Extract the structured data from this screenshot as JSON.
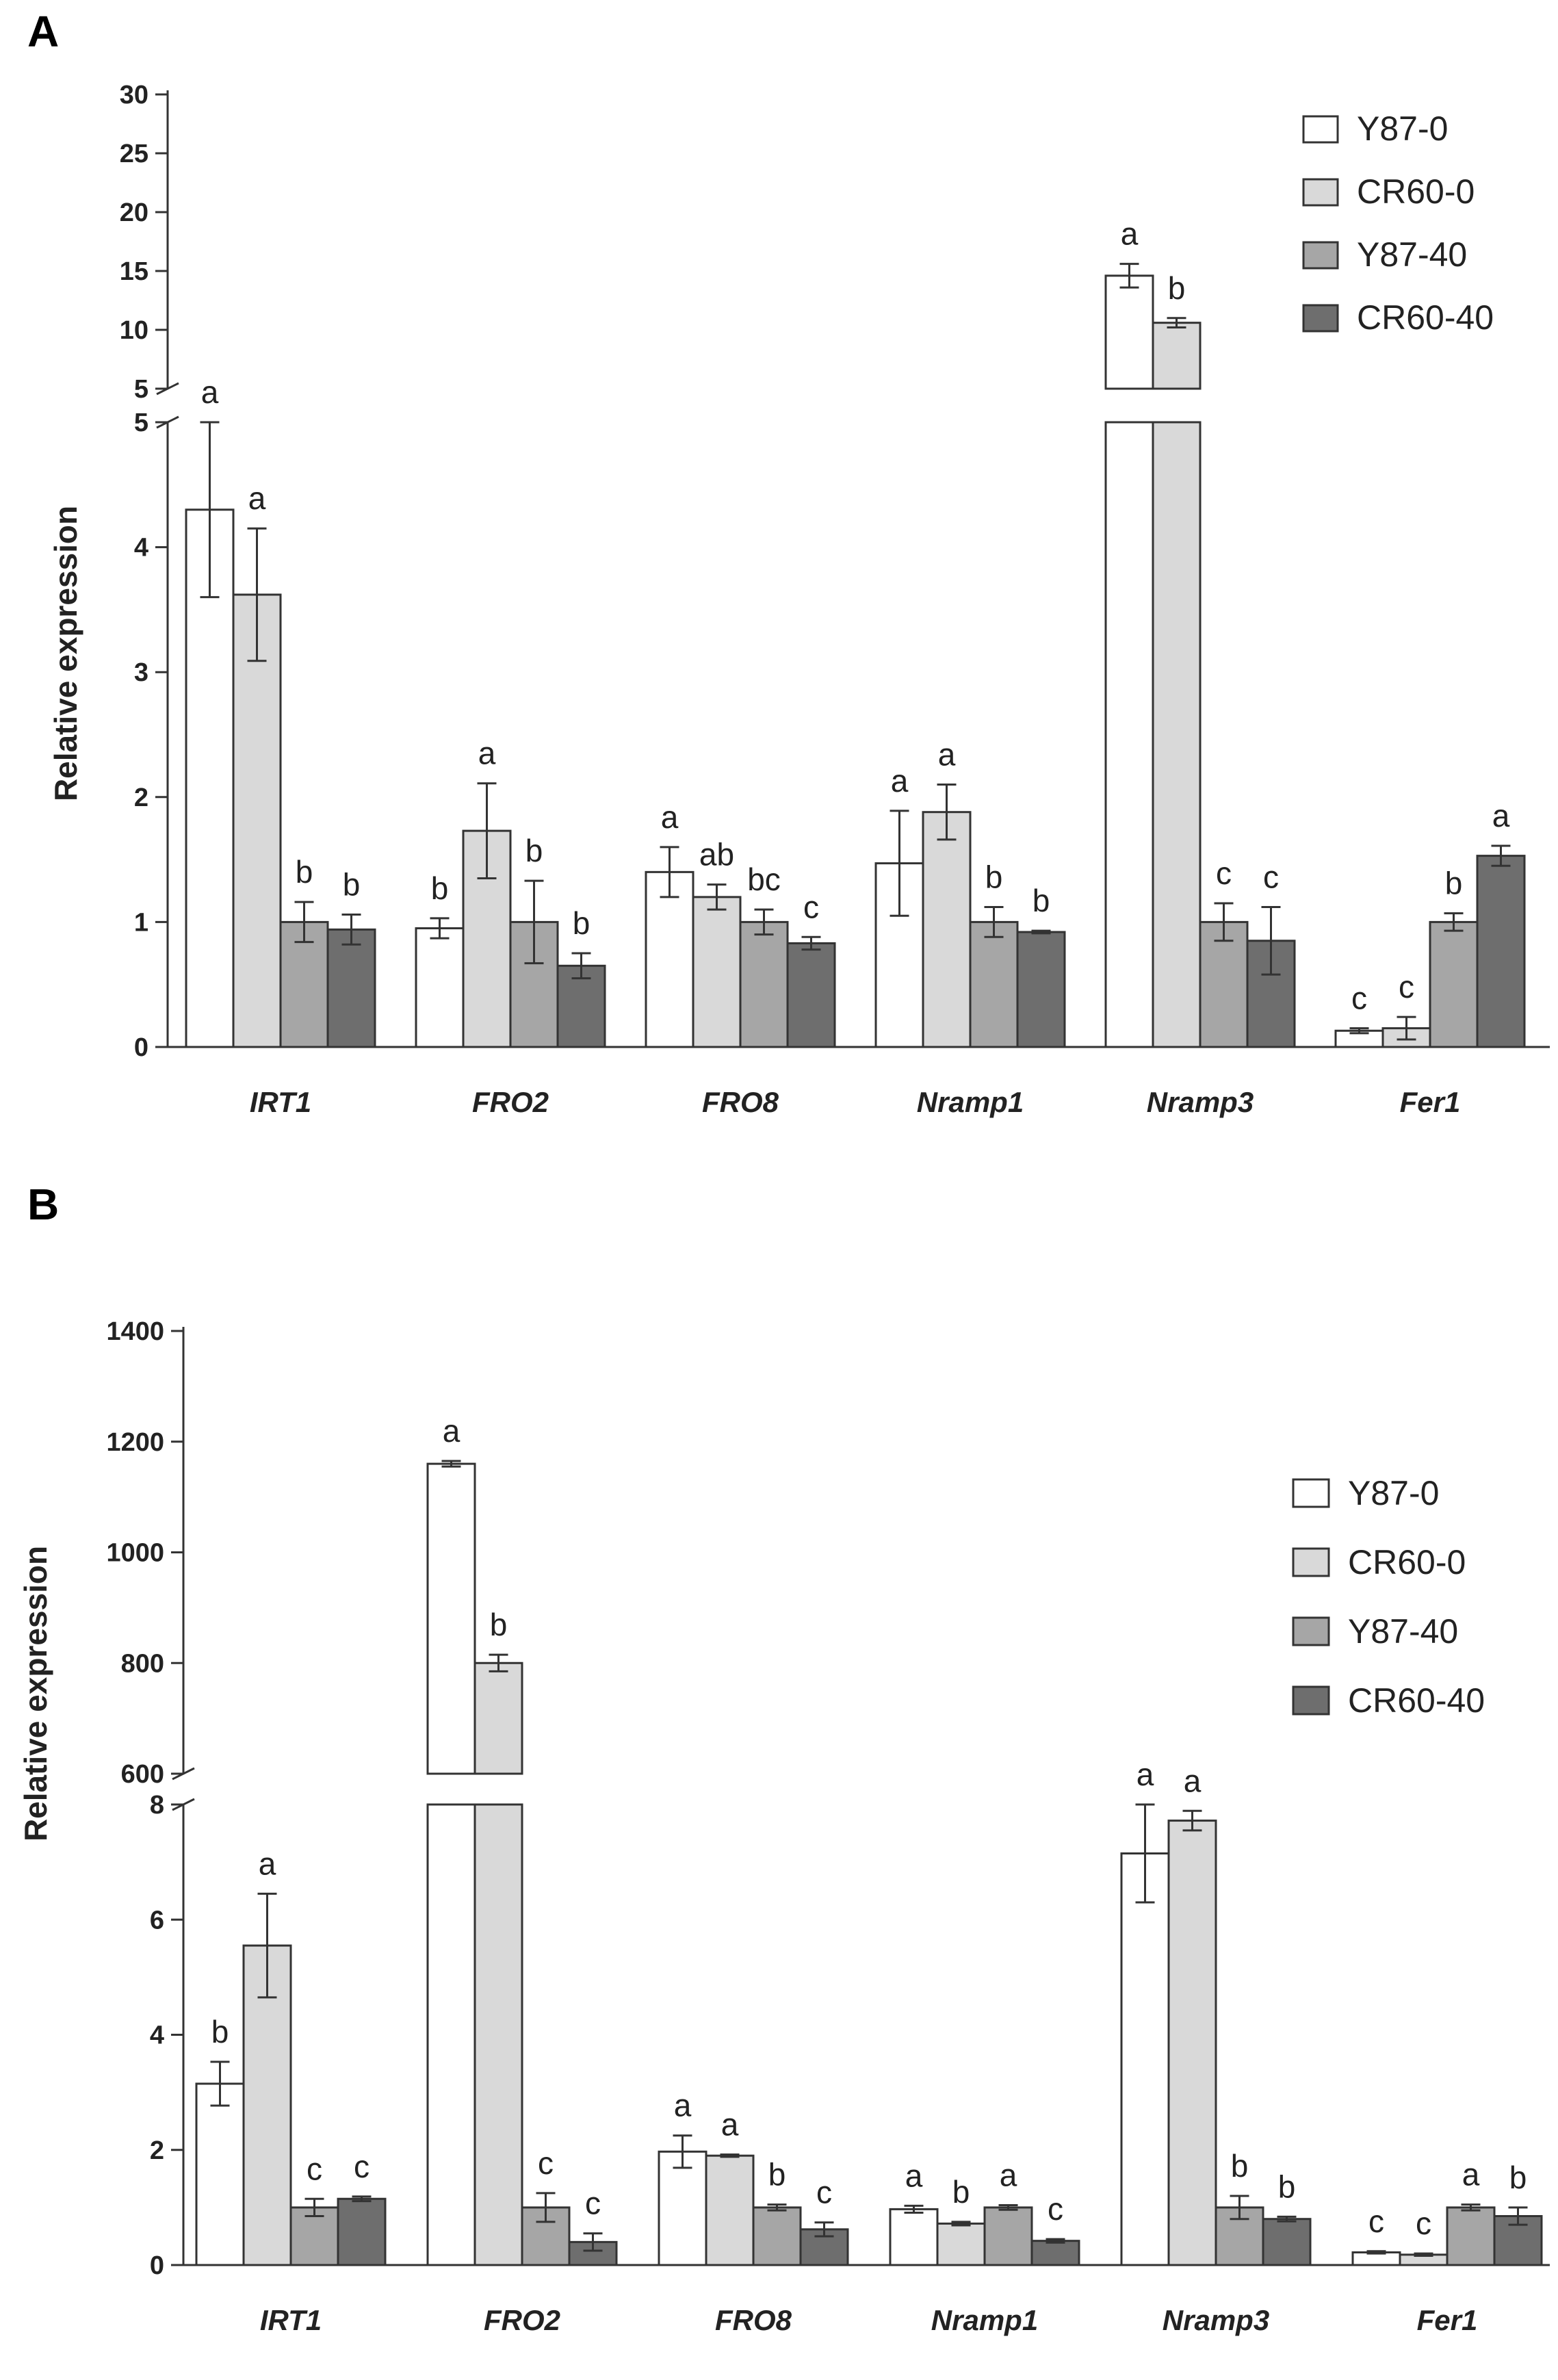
{
  "chart_data": [
    {
      "panel": "A",
      "type": "bar",
      "ylabel": "Relative expression",
      "categories": [
        "IRT1",
        "FRO2",
        "FRO8",
        "Nramp1",
        "Nramp3",
        "Fer1"
      ],
      "series": [
        {
          "name": "Y87-0",
          "color": "#ffffff",
          "values": [
            4.3,
            0.95,
            1.4,
            1.47,
            14.6,
            0.13
          ],
          "errors": [
            0.7,
            0.08,
            0.2,
            0.42,
            1.0,
            0.02
          ],
          "letters": [
            "a",
            "b",
            "a",
            "a",
            "a",
            "c"
          ]
        },
        {
          "name": "CR60-0",
          "color": "#d9d9d9",
          "values": [
            3.62,
            1.73,
            1.2,
            1.88,
            10.6,
            0.15
          ],
          "errors": [
            0.53,
            0.38,
            0.1,
            0.22,
            0.4,
            0.09
          ],
          "letters": [
            "a",
            "a",
            "ab",
            "a",
            "b",
            "c"
          ]
        },
        {
          "name": "Y87-40",
          "color": "#a6a6a6",
          "values": [
            1.0,
            1.0,
            1.0,
            1.0,
            1.0,
            1.0
          ],
          "errors": [
            0.16,
            0.33,
            0.1,
            0.12,
            0.15,
            0.07
          ],
          "letters": [
            "b",
            "b",
            "bc",
            "b",
            "c",
            "b"
          ]
        },
        {
          "name": "CR60-40",
          "color": "#6e6e6e",
          "values": [
            0.94,
            0.65,
            0.83,
            0.92,
            0.85,
            1.53
          ],
          "errors": [
            0.12,
            0.1,
            0.05,
            0.01,
            0.27,
            0.08
          ],
          "letters": [
            "b",
            "b",
            "c",
            "b",
            "c",
            "a"
          ]
        }
      ],
      "ylim_lower": [
        0,
        5
      ],
      "ylim_upper": [
        5,
        30
      ],
      "yticks_lower": [
        "0",
        "1",
        "2",
        "3",
        "4",
        "5"
      ],
      "yticks_upper": [
        "5",
        "10",
        "15",
        "20",
        "25",
        "30"
      ],
      "legend_position": "top-right"
    },
    {
      "panel": "B",
      "type": "bar",
      "ylabel": "Relative expression",
      "categories": [
        "IRT1",
        "FRO2",
        "FRO8",
        "Nramp1",
        "Nramp3",
        "Fer1"
      ],
      "series": [
        {
          "name": "Y87-0",
          "color": "#ffffff",
          "values": [
            3.15,
            1160,
            1.97,
            0.97,
            7.15,
            0.22
          ],
          "errors": [
            0.38,
            5,
            0.28,
            0.06,
            0.85,
            0.02
          ],
          "letters": [
            "b",
            "a",
            "a",
            "a",
            "a",
            "c"
          ]
        },
        {
          "name": "CR60-0",
          "color": "#d9d9d9",
          "values": [
            5.55,
            800,
            1.9,
            0.72,
            7.72,
            0.18
          ],
          "errors": [
            0.9,
            15,
            0.02,
            0.03,
            0.17,
            0.02
          ],
          "letters": [
            "a",
            "b",
            "a",
            "b",
            "a",
            "c"
          ]
        },
        {
          "name": "Y87-40",
          "color": "#a6a6a6",
          "values": [
            1.0,
            1.0,
            1.0,
            1.0,
            1.0,
            1.0
          ],
          "errors": [
            0.15,
            0.25,
            0.05,
            0.04,
            0.2,
            0.05
          ],
          "letters": [
            "c",
            "c",
            "b",
            "a",
            "b",
            "a"
          ]
        },
        {
          "name": "CR60-40",
          "color": "#6e6e6e",
          "values": [
            1.15,
            0.4,
            0.62,
            0.42,
            0.8,
            0.85
          ],
          "errors": [
            0.04,
            0.15,
            0.12,
            0.03,
            0.04,
            0.15
          ],
          "letters": [
            "c",
            "c",
            "c",
            "c",
            "b",
            "b"
          ]
        }
      ],
      "ylim_lower": [
        0,
        8
      ],
      "ylim_upper": [
        600,
        1400
      ],
      "yticks_lower": [
        "0",
        "2",
        "4",
        "6",
        "8"
      ],
      "yticks_upper": [
        "600",
        "800",
        "1000",
        "1200",
        "1400"
      ],
      "legend_position": "top-right"
    }
  ],
  "panels": {
    "a": {
      "label": "A",
      "ylabel": "Relative expression"
    },
    "b": {
      "label": "B",
      "ylabel": "Relative expression"
    }
  }
}
